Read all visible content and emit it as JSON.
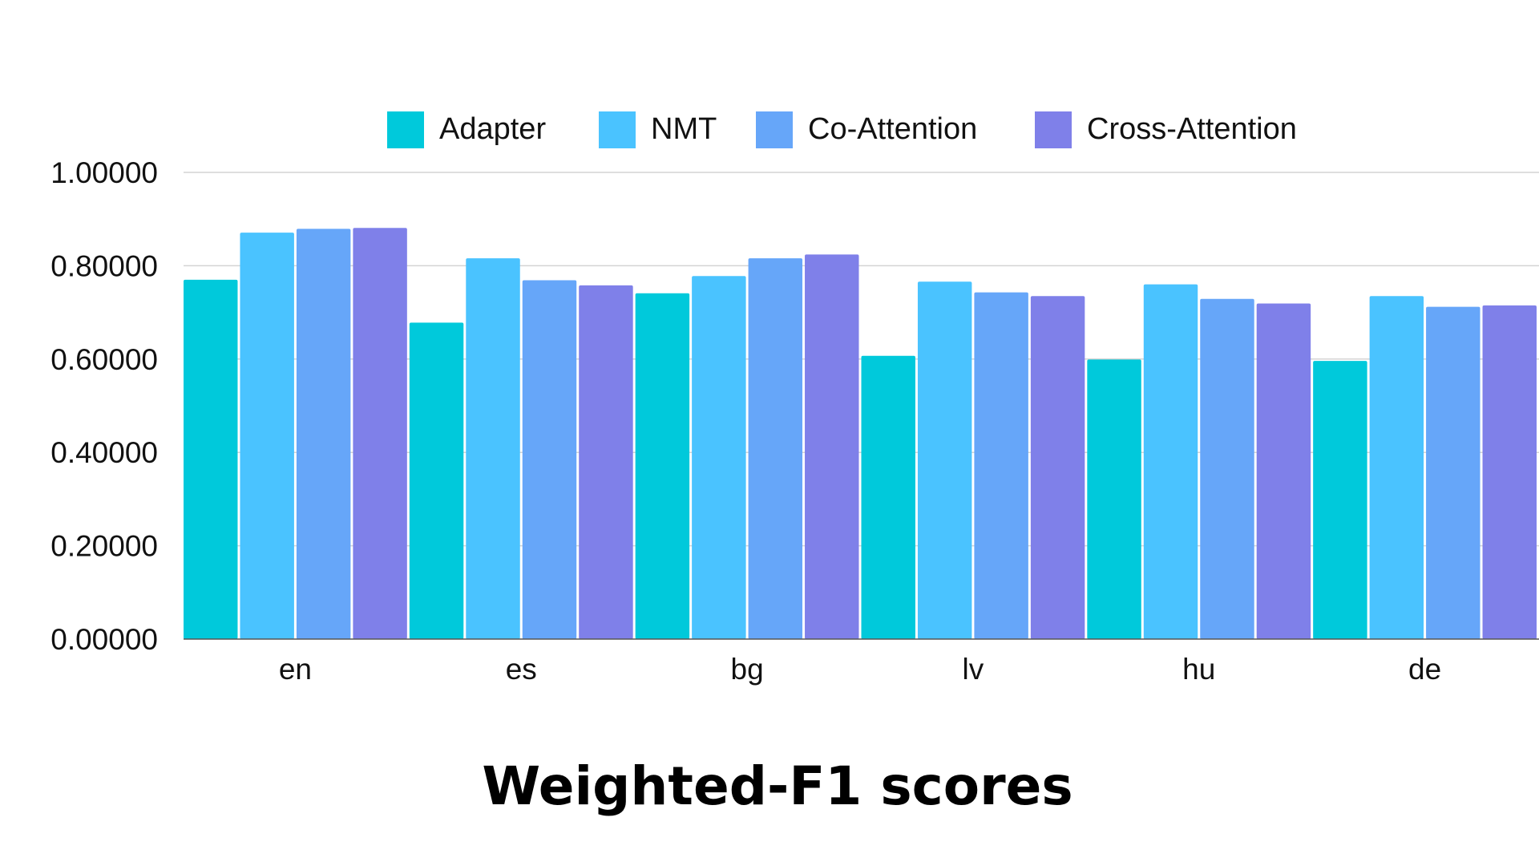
{
  "chart_data": {
    "type": "bar",
    "title": "Weighted-F1 scores",
    "xlabel": "",
    "ylabel": "",
    "categories": [
      "en",
      "es",
      "bg",
      "lv",
      "hu",
      "de"
    ],
    "series": [
      {
        "name": "Adapter",
        "color": "#00C9DB",
        "values": [
          0.77,
          0.678,
          0.741,
          0.607,
          0.599,
          0.596
        ]
      },
      {
        "name": "NMT",
        "color": "#4AC3FF",
        "values": [
          0.871,
          0.816,
          0.778,
          0.766,
          0.76,
          0.735
        ]
      },
      {
        "name": "Co-Attention",
        "color": "#66A6F9",
        "values": [
          0.879,
          0.769,
          0.816,
          0.743,
          0.729,
          0.712
        ]
      },
      {
        "name": "Cross-Attention",
        "color": "#7F80E9",
        "values": [
          0.881,
          0.758,
          0.824,
          0.735,
          0.719,
          0.715
        ]
      }
    ],
    "ylim": [
      0,
      1
    ],
    "yticks": [
      "0.00000",
      "0.20000",
      "0.40000",
      "0.60000",
      "0.80000",
      "1.00000"
    ],
    "grid": true,
    "legend_position": "top"
  }
}
